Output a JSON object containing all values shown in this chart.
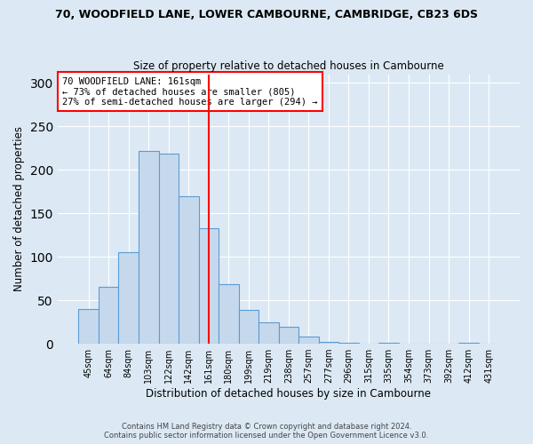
{
  "title": "70, WOODFIELD LANE, LOWER CAMBOURNE, CAMBRIDGE, CB23 6DS",
  "subtitle": "Size of property relative to detached houses in Cambourne",
  "xlabel": "Distribution of detached houses by size in Cambourne",
  "ylabel": "Number of detached properties",
  "bar_labels": [
    "45sqm",
    "64sqm",
    "84sqm",
    "103sqm",
    "122sqm",
    "142sqm",
    "161sqm",
    "180sqm",
    "199sqm",
    "219sqm",
    "238sqm",
    "257sqm",
    "277sqm",
    "296sqm",
    "315sqm",
    "335sqm",
    "354sqm",
    "373sqm",
    "392sqm",
    "412sqm",
    "431sqm"
  ],
  "bar_values": [
    40,
    65,
    105,
    222,
    219,
    170,
    133,
    69,
    39,
    25,
    20,
    8,
    2,
    1,
    0,
    1,
    0,
    0,
    0,
    1,
    0
  ],
  "bar_color": "#c6d9ec",
  "bar_edge_color": "#5b9bd5",
  "vline_index": 6,
  "vline_color": "red",
  "annotation_text": "70 WOODFIELD LANE: 161sqm\n← 73% of detached houses are smaller (805)\n27% of semi-detached houses are larger (294) →",
  "annotation_box_color": "white",
  "annotation_box_edge_color": "red",
  "ylim": [
    0,
    310
  ],
  "yticks": [
    0,
    50,
    100,
    150,
    200,
    250,
    300
  ],
  "background_color": "#dce9f5",
  "footer_line1": "Contains HM Land Registry data © Crown copyright and database right 2024.",
  "footer_line2": "Contains public sector information licensed under the Open Government Licence v3.0."
}
